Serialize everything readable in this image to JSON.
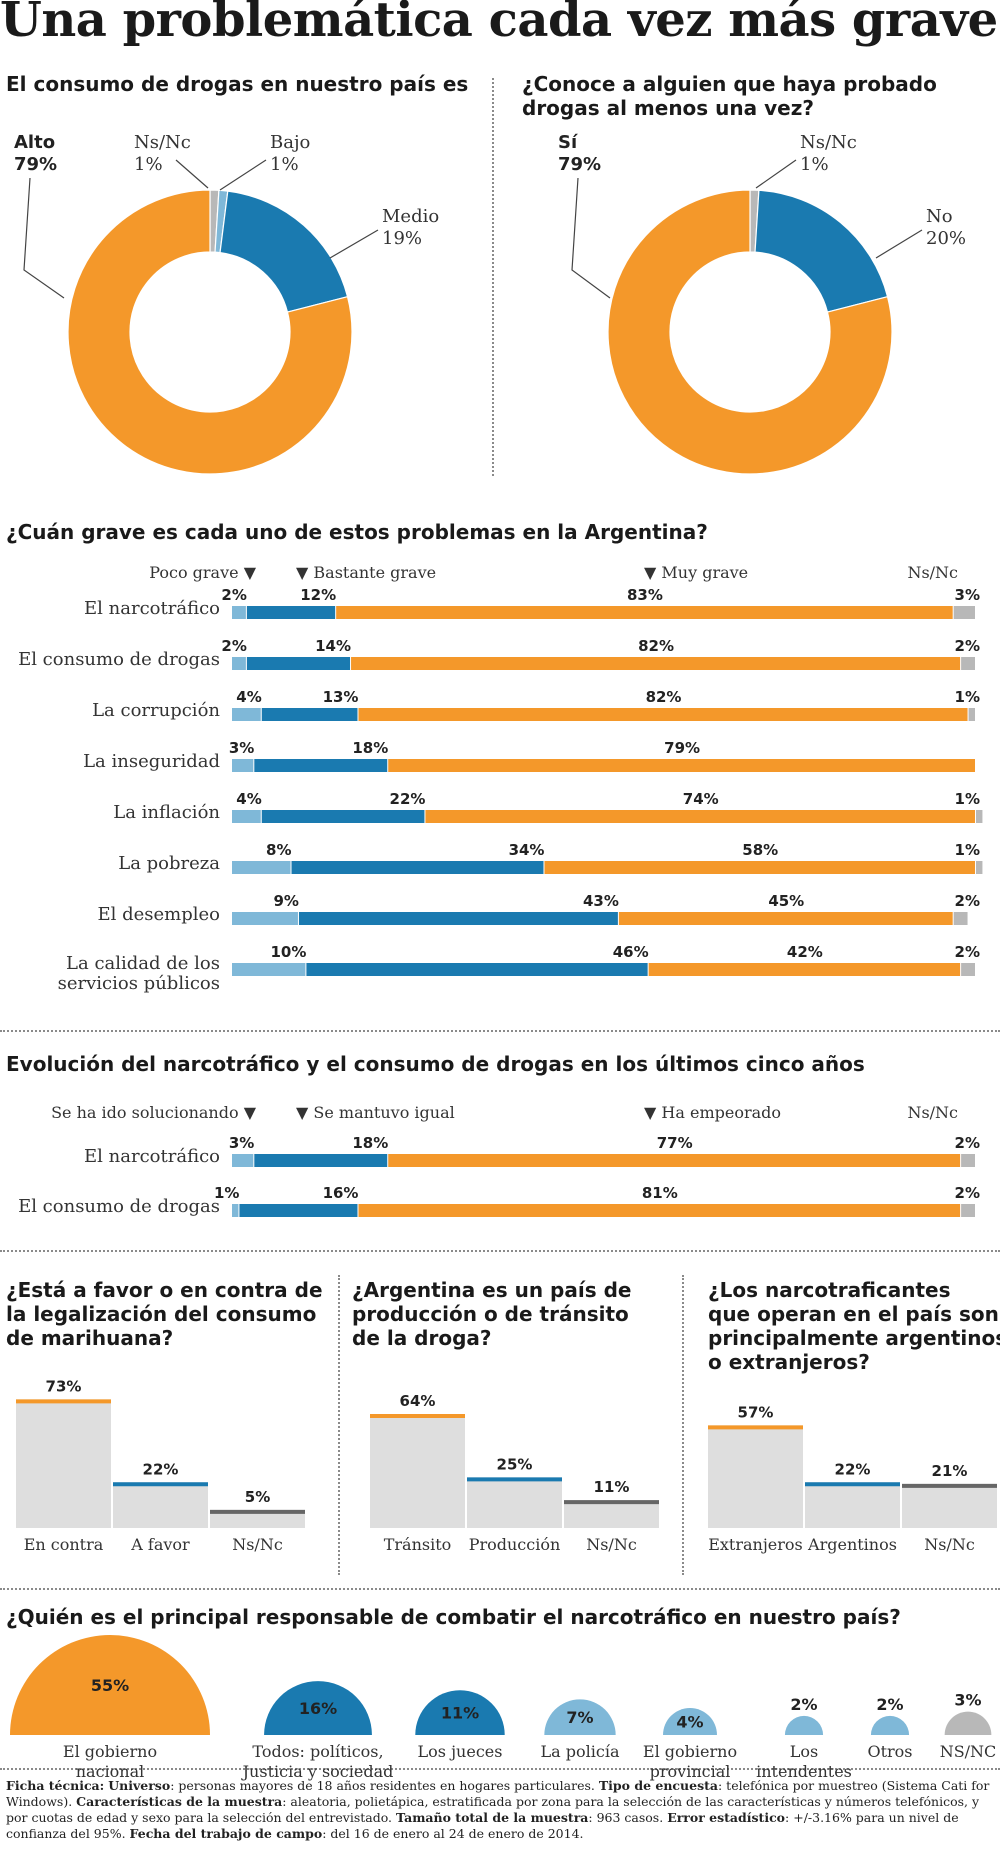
{
  "title": "Una problemática cada vez más grave",
  "colors": {
    "orange": "#f4982a",
    "blue": "#1a7ab0",
    "lightblue": "#7fb8d8",
    "gray": "#b8b8b8",
    "darkgray": "#666666",
    "barfill": "#dedede"
  },
  "chart_data": [
    {
      "type": "pie",
      "title": "El consumo de drogas en nuestro país es",
      "labels": [
        "Alto",
        "Medio",
        "Bajo",
        "Ns/Nc"
      ],
      "values": [
        79,
        19,
        1,
        1
      ],
      "display": [
        "79%",
        "19%",
        "1%",
        "1%"
      ]
    },
    {
      "type": "pie",
      "title": "¿Conoce a alguien que haya probado drogas al menos una vez?",
      "labels": [
        "Sí",
        "No",
        "Ns/Nc"
      ],
      "values": [
        79,
        20,
        1
      ],
      "display": [
        "79%",
        "20%",
        "1%"
      ]
    },
    {
      "type": "bar",
      "stacked": true,
      "orientation": "horizontal",
      "title": "¿Cuán grave es cada uno de estos problemas en la Argentina?",
      "series_names": [
        "Poco grave",
        "Bastante grave",
        "Muy grave",
        "Ns/Nc"
      ],
      "legend_display": [
        "Poco grave ▼",
        "▼ Bastante grave",
        "▼ Muy grave",
        "Ns/Nc"
      ],
      "rows": [
        {
          "label": "El narcotráfico",
          "values": [
            2,
            12,
            83,
            3
          ]
        },
        {
          "label": "El consumo de drogas",
          "values": [
            2,
            14,
            82,
            2
          ]
        },
        {
          "label": "La corrupción",
          "values": [
            4,
            13,
            82,
            1
          ]
        },
        {
          "label": "La inseguridad",
          "values": [
            3,
            18,
            79,
            0
          ]
        },
        {
          "label": "La inflación",
          "values": [
            4,
            22,
            74,
            1
          ]
        },
        {
          "label": "La pobreza",
          "values": [
            8,
            34,
            58,
            1
          ]
        },
        {
          "label": "El desempleo",
          "values": [
            9,
            43,
            45,
            2
          ]
        },
        {
          "label": "La calidad de los servicios públicos",
          "label_lines": [
            "La calidad de los",
            "servicios públicos"
          ],
          "values": [
            10,
            46,
            42,
            2
          ]
        }
      ]
    },
    {
      "type": "bar",
      "stacked": true,
      "orientation": "horizontal",
      "title": "Evolución del narcotráfico y el consumo de drogas en los últimos cinco años",
      "series_names": [
        "Se ha ido solucionando",
        "Se mantuvo igual",
        "Ha empeorado",
        "Ns/Nc"
      ],
      "legend_display": [
        "Se ha ido solucionando ▼",
        "▼ Se mantuvo igual",
        "▼ Ha empeorado",
        "Ns/Nc"
      ],
      "rows": [
        {
          "label": "El narcotráfico",
          "values": [
            3,
            18,
            77,
            2
          ]
        },
        {
          "label": "El consumo de drogas",
          "values": [
            1,
            16,
            81,
            2
          ]
        }
      ]
    },
    {
      "type": "bar",
      "title": "¿Está a favor o en contra de la legalización del consumo de marihuana?",
      "title_lines": [
        "¿Está a favor o en contra de",
        "la legalización del consumo",
        "de marihuana?"
      ],
      "categories": [
        "En contra",
        "A favor",
        "Ns/Nc"
      ],
      "values": [
        73,
        22,
        5
      ]
    },
    {
      "type": "bar",
      "title": "¿Argentina es un país de producción o de tránsito de la droga?",
      "title_lines": [
        "¿Argentina es un país de",
        "producción o de tránsito",
        "de la droga?"
      ],
      "categories": [
        "Tránsito",
        "Producción",
        "Ns/Nc"
      ],
      "values": [
        64,
        25,
        11
      ]
    },
    {
      "type": "bar",
      "title": "¿Los narcotraficantes que operan en el país son principalmente argentinos o extranjeros?",
      "title_lines": [
        "¿Los narcotraficantes",
        "que operan en el país son",
        "principalmente argentinos",
        "o extranjeros?"
      ],
      "categories": [
        "Extranjeros",
        "Argentinos",
        "Ns/Nc"
      ],
      "values": [
        57,
        22,
        21
      ]
    },
    {
      "type": "bubble",
      "title": "¿Quién es el principal responsable de combatir el narcotráfico en nuestro país?",
      "categories": [
        "El gobierno nacional",
        "Todos: políticos, Justicia y sociedad",
        "Los jueces",
        "La policía",
        "El gobierno provincial",
        "Los intendentes",
        "Otros",
        "NS/NC"
      ],
      "category_lines": [
        [
          "El gobierno",
          "nacional"
        ],
        [
          "Todos: políticos,",
          "Justicia y sociedad"
        ],
        [
          "Los jueces"
        ],
        [
          "La policía"
        ],
        [
          "El gobierno",
          "provincial"
        ],
        [
          "Los",
          "intendentes"
        ],
        [
          "Otros"
        ],
        [
          "NS/NC"
        ]
      ],
      "values": [
        55,
        16,
        11,
        7,
        4,
        2,
        2,
        3
      ]
    }
  ],
  "footnote": {
    "ficha_label": "Ficha técnica:",
    "universo_label": "Universo",
    "universo_text": ": personas mayores de 18 años residentes en hogares particulares.",
    "tipo_label": "Tipo de encuesta",
    "tipo_text": ": telefónica por muestreo (Sistema Cati for Windows).",
    "caract_label": "Características de la muestra",
    "caract_text": ": aleatoria, polietápica, estratificada por zona para la selección de las características y números telefónicos, y por cuotas de edad y sexo para la selección del entrevistado.",
    "tamano_label": "Tamaño total de la muestra",
    "tamano_text": ": 963 casos.",
    "error_label": "Error estadístico",
    "error_text": ": +/-3.16% para un nivel de confianza del 95%.",
    "fecha_label": "Fecha del trabajo de campo",
    "fecha_text": ": del 16 de enero al 24 de enero de 2014."
  }
}
